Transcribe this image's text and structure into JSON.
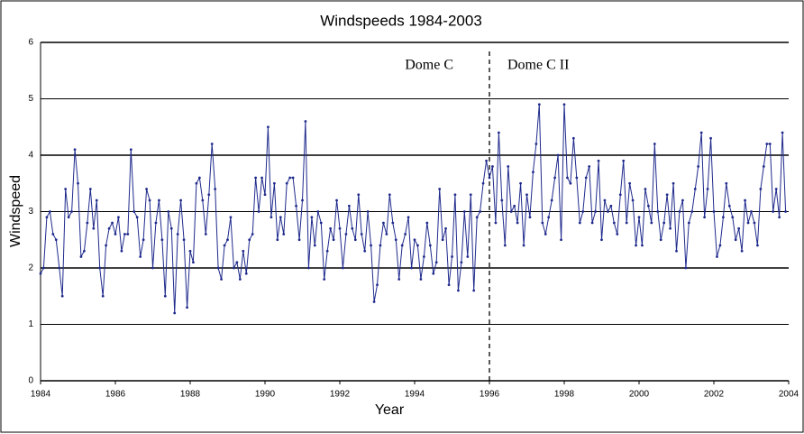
{
  "chart_data": {
    "type": "line",
    "title": "Windspeeds 1984-2003",
    "x_label": "Year",
    "y_label": "Windspeed",
    "annotations": [
      "Dome C",
      "Dome C II"
    ],
    "divider": 1996,
    "xlim": [
      1984,
      2004
    ],
    "xticks": [
      1984,
      1986,
      1988,
      1990,
      1992,
      1994,
      1996,
      1998,
      2000,
      2002,
      2004
    ],
    "ylim": [
      0,
      6
    ],
    "yticks": [
      0,
      1,
      2,
      3,
      4,
      5,
      6
    ],
    "grid": true,
    "x": [
      1984,
      1984.083,
      1984.167,
      1984.25,
      1984.333,
      1984.417,
      1984.5,
      1984.583,
      1984.667,
      1984.75,
      1984.833,
      1984.917,
      1985,
      1985.083,
      1985.167,
      1985.25,
      1985.333,
      1985.417,
      1985.5,
      1985.583,
      1985.667,
      1985.75,
      1985.833,
      1985.917,
      1986,
      1986.083,
      1986.167,
      1986.25,
      1986.333,
      1986.417,
      1986.5,
      1986.583,
      1986.667,
      1986.75,
      1986.833,
      1986.917,
      1987,
      1987.083,
      1987.167,
      1987.25,
      1987.333,
      1987.417,
      1987.5,
      1987.583,
      1987.667,
      1987.75,
      1987.833,
      1987.917,
      1988,
      1988.083,
      1988.167,
      1988.25,
      1988.333,
      1988.417,
      1988.5,
      1988.583,
      1988.667,
      1988.75,
      1988.833,
      1988.917,
      1989,
      1989.083,
      1989.167,
      1989.25,
      1989.333,
      1989.417,
      1989.5,
      1989.583,
      1989.667,
      1989.75,
      1989.833,
      1989.917,
      1990,
      1990.083,
      1990.167,
      1990.25,
      1990.333,
      1990.417,
      1990.5,
      1990.583,
      1990.667,
      1990.75,
      1990.833,
      1990.917,
      1991,
      1991.083,
      1991.167,
      1991.25,
      1991.333,
      1991.417,
      1991.5,
      1991.583,
      1991.667,
      1991.75,
      1991.833,
      1991.917,
      1992,
      1992.083,
      1992.167,
      1992.25,
      1992.333,
      1992.417,
      1992.5,
      1992.583,
      1992.667,
      1992.75,
      1992.833,
      1992.917,
      1993,
      1993.083,
      1993.167,
      1993.25,
      1993.333,
      1993.417,
      1993.5,
      1993.583,
      1993.667,
      1993.75,
      1993.833,
      1993.917,
      1994,
      1994.083,
      1994.167,
      1994.25,
      1994.333,
      1994.417,
      1994.5,
      1994.583,
      1994.667,
      1994.75,
      1994.833,
      1994.917,
      1995,
      1995.083,
      1995.167,
      1995.25,
      1995.333,
      1995.417,
      1995.5,
      1995.583,
      1995.667,
      1995.75,
      1995.833,
      1995.917,
      1996,
      1996.083,
      1996.167,
      1996.25,
      1996.333,
      1996.417,
      1996.5,
      1996.583,
      1996.667,
      1996.75,
      1996.833,
      1996.917,
      1997,
      1997.083,
      1997.167,
      1997.25,
      1997.333,
      1997.417,
      1997.5,
      1997.583,
      1997.667,
      1997.75,
      1997.833,
      1997.917,
      1998,
      1998.083,
      1998.167,
      1998.25,
      1998.333,
      1998.417,
      1998.5,
      1998.583,
      1998.667,
      1998.75,
      1998.833,
      1998.917,
      1999,
      1999.083,
      1999.167,
      1999.25,
      1999.333,
      1999.417,
      1999.5,
      1999.583,
      1999.667,
      1999.75,
      1999.833,
      1999.917,
      2000,
      2000.083,
      2000.167,
      2000.25,
      2000.333,
      2000.417,
      2000.5,
      2000.583,
      2000.667,
      2000.75,
      2000.833,
      2000.917,
      2001,
      2001.083,
      2001.167,
      2001.25,
      2001.333,
      2001.417,
      2001.5,
      2001.583,
      2001.667,
      2001.75,
      2001.833,
      2001.917,
      2002,
      2002.083,
      2002.167,
      2002.25,
      2002.333,
      2002.417,
      2002.5,
      2002.583,
      2002.667,
      2002.75,
      2002.833,
      2002.917,
      2003,
      2003.083,
      2003.167,
      2003.25,
      2003.333,
      2003.417,
      2003.5,
      2003.583,
      2003.667,
      2003.75,
      2003.833,
      2003.917
    ],
    "series": [
      {
        "name": "Windspeed",
        "color": "#1f2a8c",
        "values": [
          1.9,
          2.0,
          2.9,
          3.0,
          2.6,
          2.5,
          2.0,
          1.5,
          3.4,
          2.9,
          3.0,
          4.1,
          3.5,
          2.2,
          2.3,
          2.8,
          3.4,
          2.7,
          3.2,
          2.0,
          1.5,
          2.4,
          2.7,
          2.8,
          2.6,
          2.9,
          2.3,
          2.6,
          2.6,
          4.1,
          3.0,
          2.9,
          2.2,
          2.5,
          3.4,
          3.2,
          2.0,
          2.8,
          3.2,
          2.5,
          1.5,
          3.0,
          2.7,
          1.2,
          2.6,
          3.2,
          2.5,
          1.3,
          2.3,
          2.1,
          3.5,
          3.6,
          3.2,
          2.6,
          3.3,
          4.2,
          3.4,
          2.0,
          1.8,
          2.4,
          2.5,
          2.9,
          2.0,
          2.1,
          1.8,
          2.3,
          1.9,
          2.5,
          2.6,
          3.6,
          3.0,
          3.6,
          3.3,
          4.5,
          2.9,
          3.5,
          2.5,
          2.9,
          2.6,
          3.5,
          3.6,
          3.6,
          3.1,
          2.5,
          3.2,
          4.6,
          2.0,
          2.9,
          2.4,
          3.0,
          2.8,
          1.8,
          2.3,
          2.7,
          2.5,
          3.2,
          2.7,
          2.0,
          2.6,
          3.1,
          2.7,
          2.5,
          3.3,
          2.6,
          2.3,
          3.0,
          2.4,
          1.4,
          1.7,
          2.4,
          2.8,
          2.6,
          3.3,
          2.8,
          2.5,
          1.8,
          2.4,
          2.6,
          2.9,
          2.0,
          2.5,
          2.4,
          1.8,
          2.2,
          2.8,
          2.4,
          1.9,
          2.1,
          3.4,
          2.5,
          2.7,
          1.7,
          2.2,
          3.3,
          1.6,
          2.1,
          3.0,
          2.2,
          3.3,
          1.6,
          2.9,
          3.0,
          3.5,
          3.9,
          3.6,
          3.8,
          2.8,
          4.4,
          3.2,
          2.4,
          3.8,
          3.0,
          3.1,
          2.8,
          3.5,
          2.4,
          3.3,
          2.9,
          3.7,
          4.2,
          4.9,
          2.8,
          2.6,
          2.9,
          3.2,
          3.6,
          4.0,
          2.5,
          4.9,
          3.6,
          3.5,
          4.3,
          3.6,
          2.8,
          3.0,
          3.6,
          3.8,
          2.8,
          3.0,
          3.9,
          2.5,
          3.2,
          3.0,
          3.1,
          2.8,
          2.6,
          3.3,
          3.9,
          2.8,
          3.5,
          3.2,
          2.4,
          2.9,
          2.4,
          3.4,
          3.1,
          2.8,
          4.2,
          3.0,
          2.5,
          2.8,
          3.3,
          2.7,
          3.5,
          2.3,
          3.0,
          3.2,
          2.0,
          2.8,
          3.0,
          3.4,
          3.8,
          4.4,
          2.9,
          3.4,
          4.3,
          3.0,
          2.2,
          2.4,
          2.9,
          3.5,
          3.1,
          2.9,
          2.5,
          2.7,
          2.3,
          3.2,
          2.8,
          3.0,
          2.8,
          2.4,
          3.4,
          3.8,
          4.2,
          4.2,
          3.0,
          3.4,
          2.9,
          4.4,
          3.0
        ]
      }
    ]
  }
}
